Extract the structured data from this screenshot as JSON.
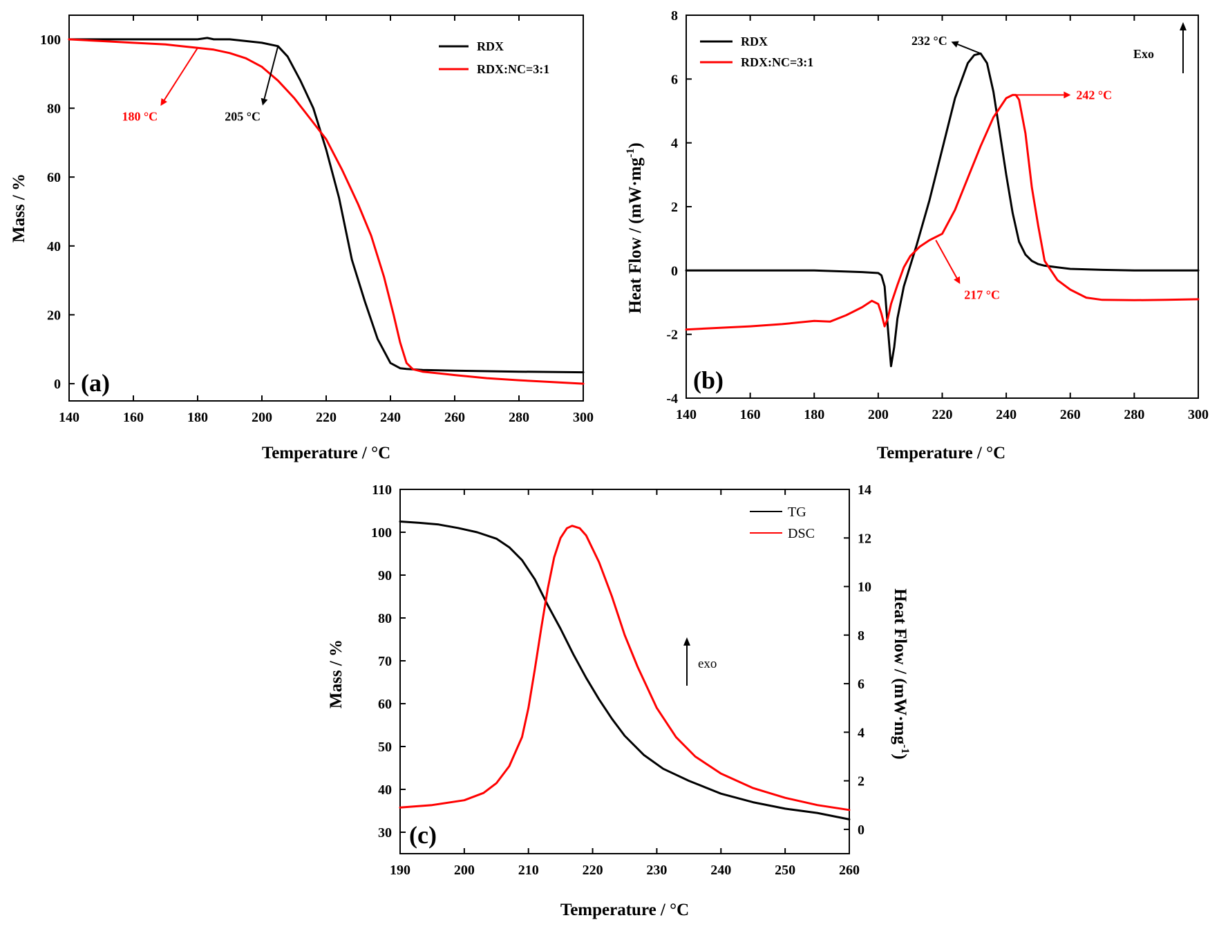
{
  "colors": {
    "black": "#000000",
    "red": "#ff0000"
  },
  "chart_data": [
    {
      "id": "a",
      "type": "line",
      "panel_label": "(a)",
      "xlabel": "Temperature / °C",
      "ylabel": "Mass / %",
      "xlim": [
        140,
        300
      ],
      "ylim": [
        -5,
        107
      ],
      "xticks": [
        140,
        160,
        180,
        200,
        220,
        240,
        260,
        280,
        300
      ],
      "yticks": [
        0,
        20,
        40,
        60,
        80,
        100
      ],
      "legend_position": "top-right",
      "series": [
        {
          "name": "RDX",
          "color": "#000000",
          "x": [
            140,
            150,
            160,
            170,
            180,
            183,
            185,
            190,
            195,
            200,
            205,
            208,
            212,
            216,
            220,
            224,
            226,
            228,
            232,
            236,
            240,
            243,
            245,
            250,
            260,
            280,
            300
          ],
          "y": [
            100,
            100,
            100,
            100,
            100,
            100.4,
            100,
            100,
            99.5,
            99,
            98,
            95,
            88,
            80,
            68,
            54,
            45,
            36,
            24,
            13,
            6,
            4.5,
            4.3,
            4.0,
            3.8,
            3.5,
            3.3
          ]
        },
        {
          "name": "RDX:NC=3:1",
          "color": "#ff0000",
          "x": [
            140,
            150,
            160,
            170,
            180,
            185,
            190,
            195,
            200,
            205,
            210,
            215,
            220,
            225,
            230,
            234,
            238,
            241,
            243,
            245,
            247,
            250,
            260,
            270,
            280,
            290,
            300
          ],
          "y": [
            100,
            99.5,
            99,
            98.5,
            97.5,
            97,
            96,
            94.5,
            92,
            88,
            83,
            77,
            71,
            62,
            52,
            43,
            31,
            20,
            12,
            6,
            4.2,
            3.5,
            2.5,
            1.6,
            1.0,
            0.5,
            0
          ]
        }
      ],
      "annotations": [
        {
          "text": "180 °C",
          "color": "#ff0000",
          "point": [
            180,
            97.5
          ],
          "label_at": [
            168,
            80
          ]
        },
        {
          "text": "205 °C",
          "color": "#000000",
          "point": [
            205,
            98
          ],
          "label_at": [
            200,
            80
          ]
        }
      ]
    },
    {
      "id": "b",
      "type": "line",
      "panel_label": "(b)",
      "xlabel": "Temperature  / °C",
      "ylabel": "Heat Flow / (mW·mg",
      "ylabel_sup": "-1",
      "ylabel_end": ")",
      "xlim": [
        140,
        300
      ],
      "ylim": [
        -4,
        8
      ],
      "xticks": [
        140,
        160,
        180,
        200,
        220,
        240,
        260,
        280,
        300
      ],
      "yticks": [
        -4,
        -2,
        0,
        2,
        4,
        6,
        8
      ],
      "legend_position": "top-left",
      "exo_label": "Exo",
      "series": [
        {
          "name": "RDX",
          "color": "#000000",
          "x": [
            140,
            160,
            180,
            195,
            200,
            201,
            202,
            203,
            204,
            205,
            206,
            208,
            212,
            216,
            220,
            224,
            228,
            230,
            232,
            234,
            236,
            238,
            240,
            242,
            244,
            246,
            248,
            250,
            252,
            256,
            260,
            270,
            280,
            300
          ],
          "y": [
            0,
            0,
            0,
            -0.05,
            -0.08,
            -0.15,
            -0.5,
            -1.8,
            -3.0,
            -2.4,
            -1.5,
            -0.5,
            0.8,
            2.2,
            3.8,
            5.4,
            6.5,
            6.75,
            6.8,
            6.5,
            5.6,
            4.3,
            3.0,
            1.8,
            0.9,
            0.5,
            0.3,
            0.2,
            0.15,
            0.1,
            0.05,
            0.02,
            0,
            0
          ]
        },
        {
          "name": "RDX:NC=3:1",
          "color": "#ff0000",
          "x": [
            140,
            150,
            160,
            170,
            180,
            185,
            190,
            195,
            198,
            200,
            201,
            202,
            203,
            204,
            206,
            208,
            210,
            213,
            216,
            220,
            224,
            228,
            232,
            236,
            240,
            242,
            243,
            244,
            246,
            248,
            250,
            252,
            256,
            260,
            265,
            270,
            280,
            290,
            300
          ],
          "y": [
            -1.85,
            -1.8,
            -1.75,
            -1.68,
            -1.58,
            -1.6,
            -1.4,
            -1.15,
            -0.95,
            -1.05,
            -1.35,
            -1.75,
            -1.5,
            -1.05,
            -0.45,
            0.1,
            0.45,
            0.75,
            0.95,
            1.15,
            1.9,
            2.9,
            3.9,
            4.8,
            5.4,
            5.5,
            5.5,
            5.35,
            4.3,
            2.6,
            1.4,
            0.3,
            -0.3,
            -0.6,
            -0.85,
            -0.92,
            -0.93,
            -0.92,
            -0.9
          ]
        }
      ],
      "annotations": [
        {
          "text": "232 °C",
          "color": "#000000",
          "point": [
            232,
            6.8
          ],
          "label_at": [
            222,
            7.2
          ]
        },
        {
          "text": "242 °C",
          "color": "#ff0000",
          "point": [
            243,
            5.5
          ],
          "label_at": [
            261,
            5.5
          ]
        },
        {
          "text": "217 °C",
          "color": "#ff0000",
          "point": [
            218,
            0.95
          ],
          "label_at": [
            226,
            -0.5
          ]
        }
      ]
    },
    {
      "id": "c",
      "type": "line",
      "panel_label": "(c)",
      "xlabel": "Temperature / °C",
      "ylabel": "Mass  / %",
      "y2label": "Heat Flow / (mW·mg",
      "y2label_sup": "-1",
      "y2label_end": ")",
      "xlim": [
        190,
        260
      ],
      "ylim": [
        25,
        110
      ],
      "y2lim": [
        -1,
        14
      ],
      "xticks": [
        190,
        200,
        210,
        220,
        230,
        240,
        250,
        260
      ],
      "yticks": [
        30,
        40,
        50,
        60,
        70,
        80,
        90,
        100,
        110
      ],
      "y2ticks": [
        0,
        2,
        4,
        6,
        8,
        10,
        12,
        14
      ],
      "legend_position": "top-right",
      "exo_label": "exo",
      "series": [
        {
          "name": "TG",
          "color": "#000000",
          "axis": "left",
          "x": [
            190,
            193,
            196,
            199,
            202,
            205,
            207,
            209,
            211,
            213,
            215,
            217,
            219,
            221,
            223,
            225,
            228,
            231,
            235,
            240,
            245,
            250,
            255,
            260
          ],
          "y": [
            102.5,
            102.2,
            101.8,
            101,
            100,
            98.5,
            96.5,
            93.5,
            89,
            83,
            77.5,
            71.5,
            66,
            61,
            56.5,
            52.5,
            48,
            44.8,
            42,
            39,
            37,
            35.5,
            34.5,
            33
          ]
        },
        {
          "name": "DSC",
          "color": "#ff0000",
          "axis": "right",
          "x": [
            190,
            195,
            200,
            203,
            205,
            207,
            209,
            210,
            211,
            212,
            213,
            214,
            215,
            216,
            216.8,
            218,
            219,
            221,
            223,
            225,
            227,
            230,
            233,
            236,
            240,
            245,
            250,
            255,
            260
          ],
          "y": [
            0.9,
            1.0,
            1.2,
            1.5,
            1.9,
            2.6,
            3.8,
            5.0,
            6.6,
            8.3,
            9.9,
            11.2,
            12.0,
            12.4,
            12.5,
            12.4,
            12.1,
            11.0,
            9.6,
            8.0,
            6.7,
            5.0,
            3.8,
            3.0,
            2.3,
            1.7,
            1.3,
            1.0,
            0.8
          ]
        }
      ]
    }
  ]
}
